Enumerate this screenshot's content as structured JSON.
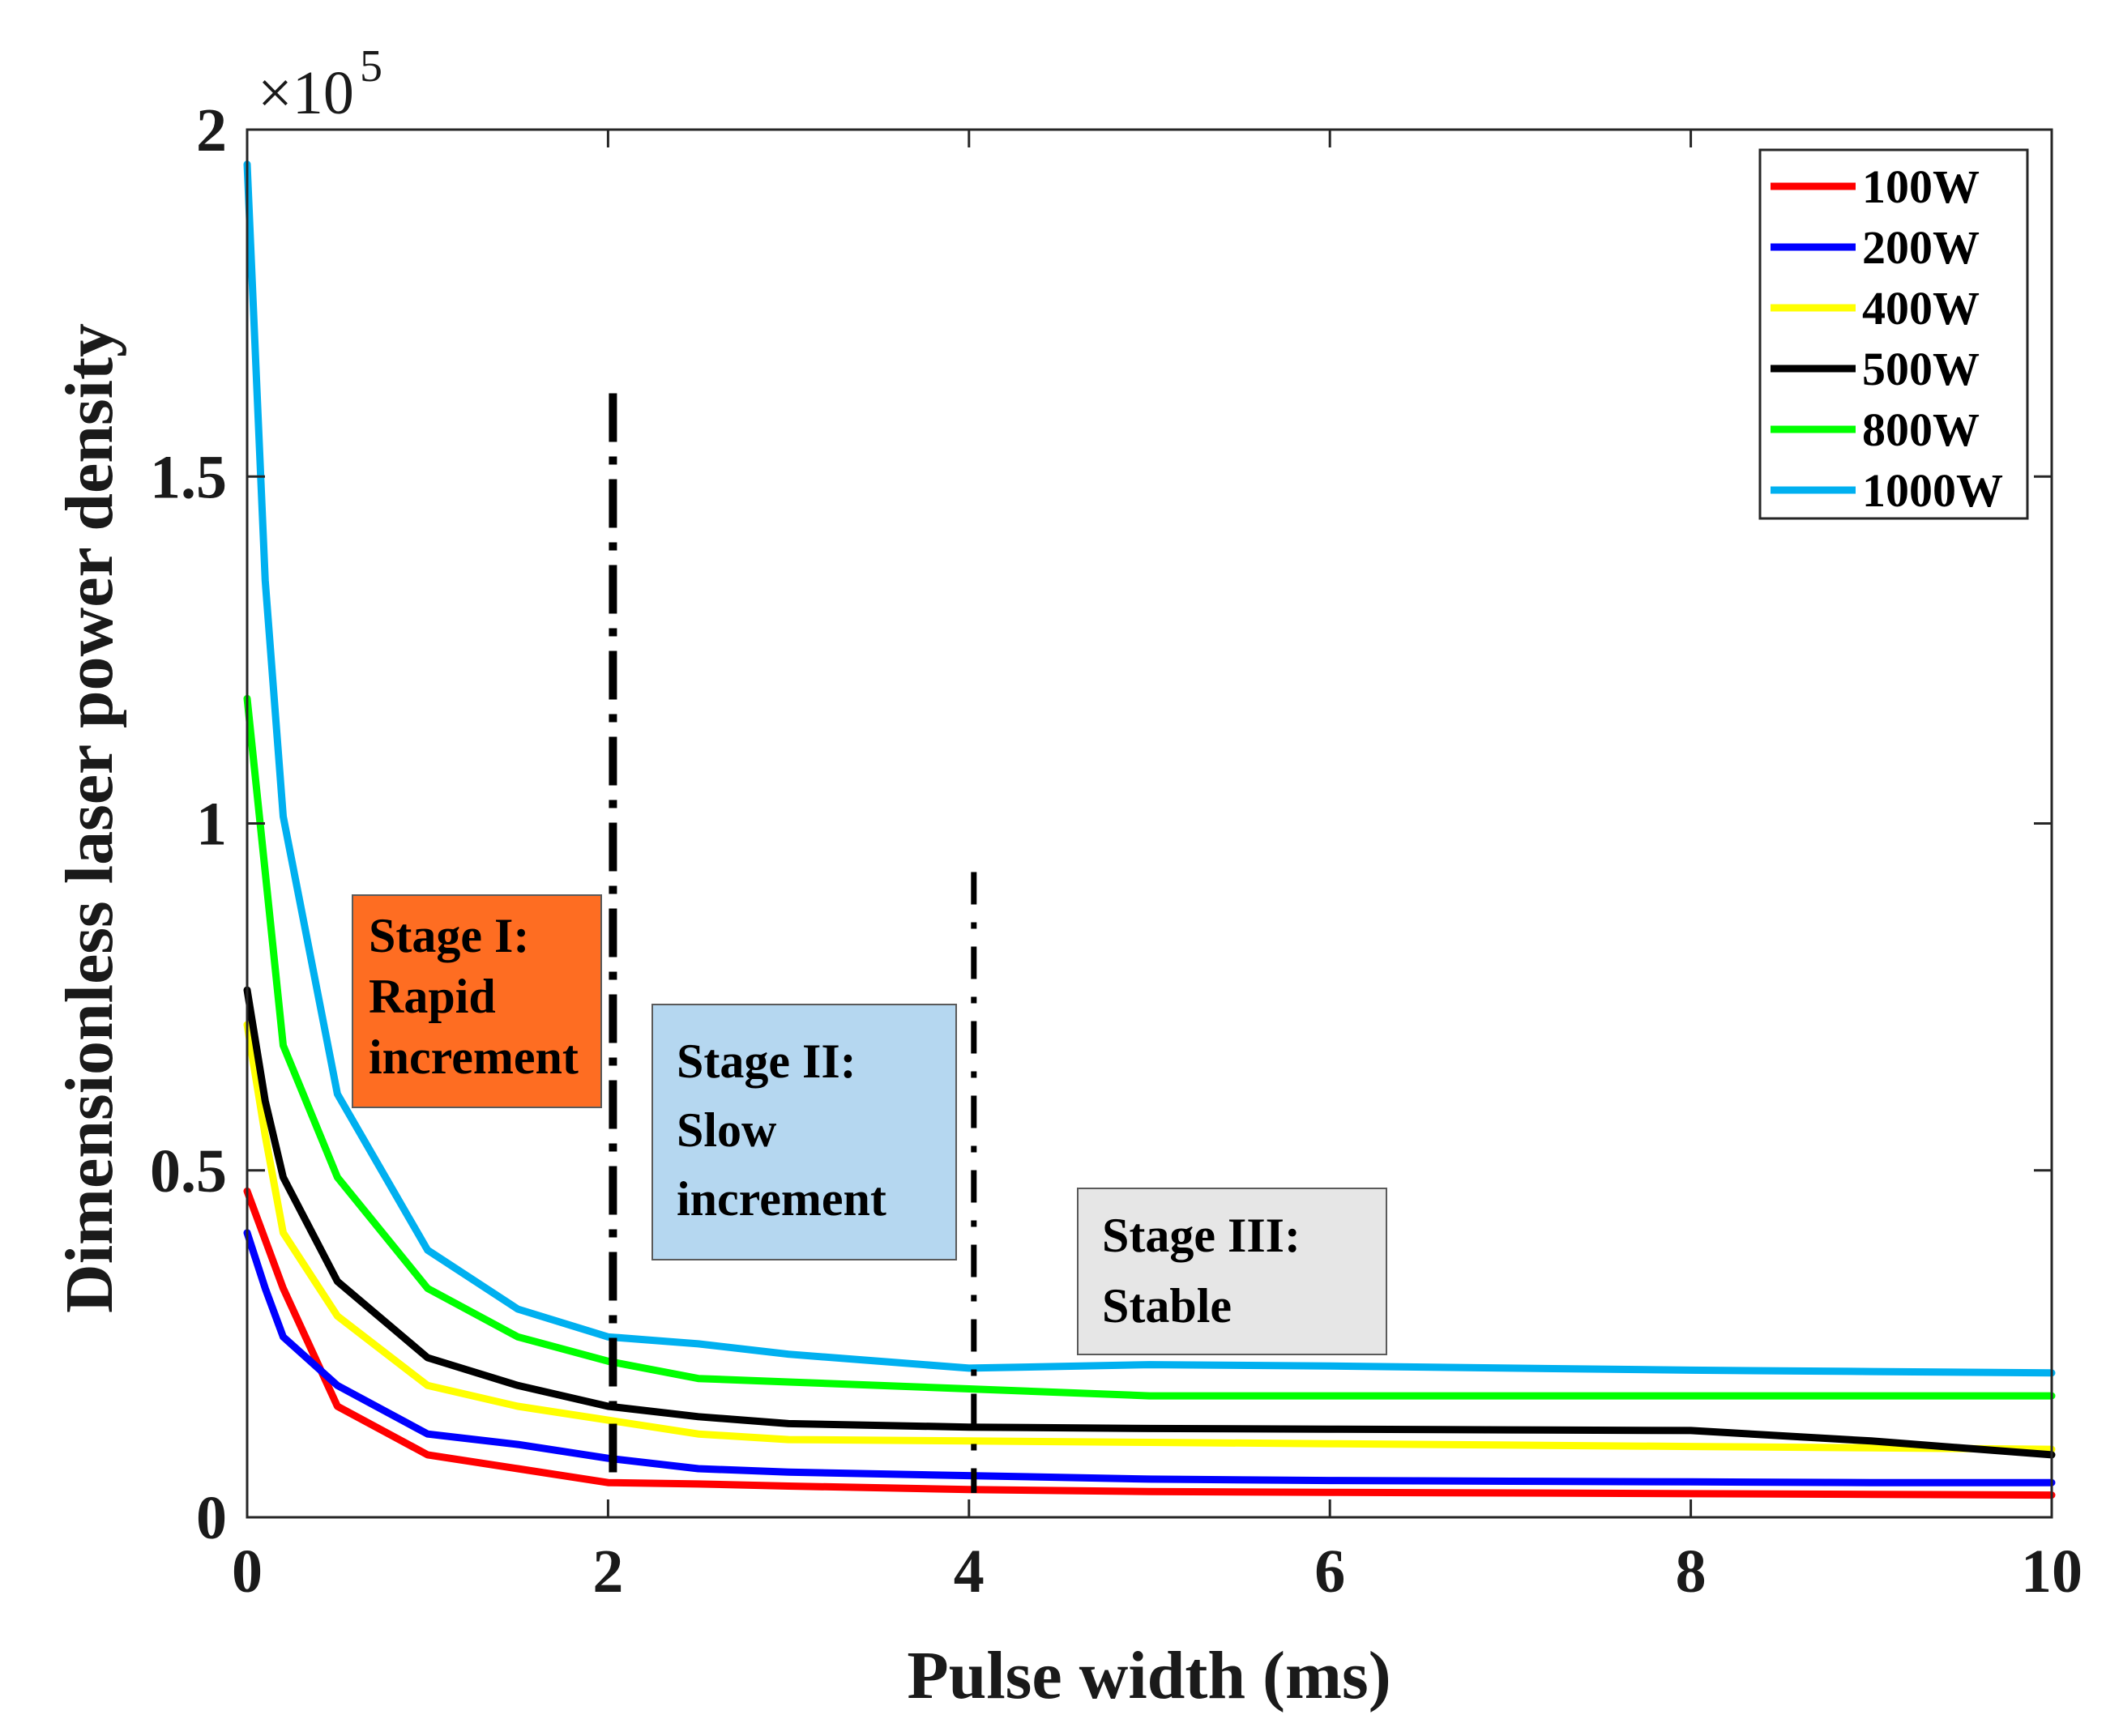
{
  "chart_data": {
    "type": "line",
    "title": "",
    "xlabel": "Pulse width (ms)",
    "ylabel": "Dimensionless laser power density",
    "xlim": [
      0,
      10
    ],
    "ylim": [
      0,
      200000
    ],
    "y_exponent_label": "×10",
    "y_exponent_power": "5",
    "x_ticks": [
      0,
      2,
      4,
      6,
      8,
      10
    ],
    "x_tick_labels": [
      "0",
      "2",
      "4",
      "6",
      "8",
      "10"
    ],
    "y_ticks": [
      0,
      50000,
      100000,
      150000,
      200000
    ],
    "y_tick_labels": [
      "0",
      "0.5",
      "1",
      "1.5",
      "2"
    ],
    "grid": false,
    "legend_position": "top-right",
    "x": [
      0,
      0.1,
      0.2,
      0.5,
      1,
      1.5,
      2,
      2.5,
      3,
      4,
      5,
      6,
      7,
      8,
      9,
      10
    ],
    "series": [
      {
        "name": "100W",
        "color": "#ff0000",
        "values": [
          47000,
          40000,
          33000,
          16000,
          9000,
          7000,
          5000,
          4800,
          4500,
          4000,
          3700,
          3600,
          3500,
          3400,
          3300,
          3200
        ]
      },
      {
        "name": "200W",
        "color": "#0000ff",
        "values": [
          41000,
          33000,
          26000,
          19000,
          12000,
          10500,
          8500,
          7000,
          6500,
          6000,
          5500,
          5300,
          5200,
          5100,
          5000,
          5000
        ]
      },
      {
        "name": "400W",
        "color": "#ffff00",
        "values": [
          71000,
          55000,
          41000,
          29000,
          19000,
          16000,
          14000,
          12000,
          11200,
          11000,
          10800,
          10600,
          10400,
          10200,
          10000,
          9800
        ]
      },
      {
        "name": "500W",
        "color": "#000000",
        "values": [
          76000,
          60000,
          49000,
          34000,
          23000,
          19000,
          16000,
          14500,
          13500,
          13000,
          12800,
          12700,
          12600,
          12500,
          11000,
          9000
        ]
      },
      {
        "name": "800W",
        "color": "#00ff00",
        "values": [
          118000,
          93000,
          68000,
          49000,
          33000,
          26000,
          22500,
          20000,
          19500,
          18500,
          17500,
          17500,
          17500,
          17500,
          17500,
          17500
        ]
      },
      {
        "name": "1000W",
        "color": "#00b0f0",
        "values": [
          195000,
          135000,
          101000,
          61000,
          38500,
          30000,
          26000,
          25000,
          23500,
          21500,
          22000,
          21800,
          21500,
          21200,
          21000,
          20800
        ]
      }
    ],
    "stage_lines": [
      {
        "x": 2,
        "y_top": 162000,
        "y_bottom": 5000
      },
      {
        "x": 4,
        "y_top": 93000,
        "y_bottom": 3500
      }
    ],
    "stage_boxes": [
      {
        "lines": [
          "Stage I:",
          "Rapid",
          "increment"
        ],
        "fill": "#fe6d22"
      },
      {
        "lines": [
          "Stage II:",
          "Slow",
          "increment"
        ],
        "fill": "#b5d7f0"
      },
      {
        "lines": [
          "Stage III:",
          "Stable"
        ],
        "fill": "#e6e6e6"
      }
    ]
  }
}
